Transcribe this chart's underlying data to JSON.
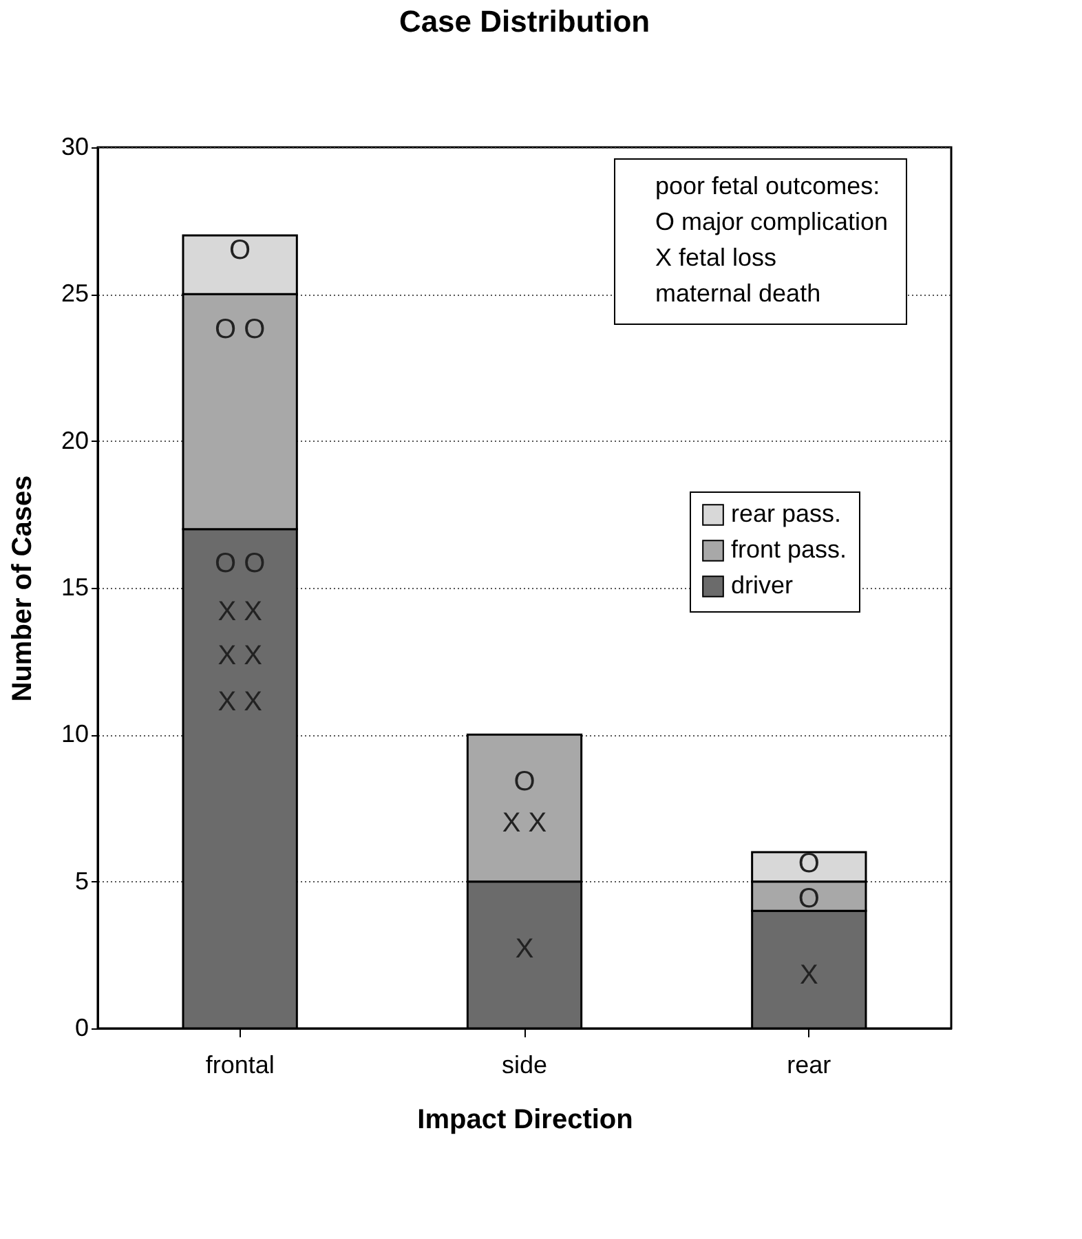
{
  "chart_data": {
    "type": "bar",
    "title": "Case Distribution",
    "xlabel": "Impact Direction",
    "ylabel": "Number of Cases",
    "categories": [
      "frontal",
      "side",
      "rear"
    ],
    "stacked": true,
    "series": [
      {
        "name": "driver",
        "color": "#6b6b6b",
        "values": [
          17,
          5,
          4
        ]
      },
      {
        "name": "front pass.",
        "color": "#a8a8a8",
        "values": [
          8,
          5,
          1
        ]
      },
      {
        "name": "rear pass.",
        "color": "#d8d8d8",
        "values": [
          2,
          0,
          1
        ]
      }
    ],
    "ylim": [
      0,
      30
    ],
    "yticks": [
      0,
      5,
      10,
      15,
      20,
      25,
      30
    ],
    "grid": "y",
    "legend": "right",
    "annotations": [
      "poor fetal outcomes:",
      "O major complication",
      "X  fetal loss",
      "maternal death",
      "O",
      "O O",
      "O O",
      "X X",
      "X X",
      "X X",
      "O",
      "X X",
      "X",
      "O",
      "O",
      "X"
    ]
  }
}
